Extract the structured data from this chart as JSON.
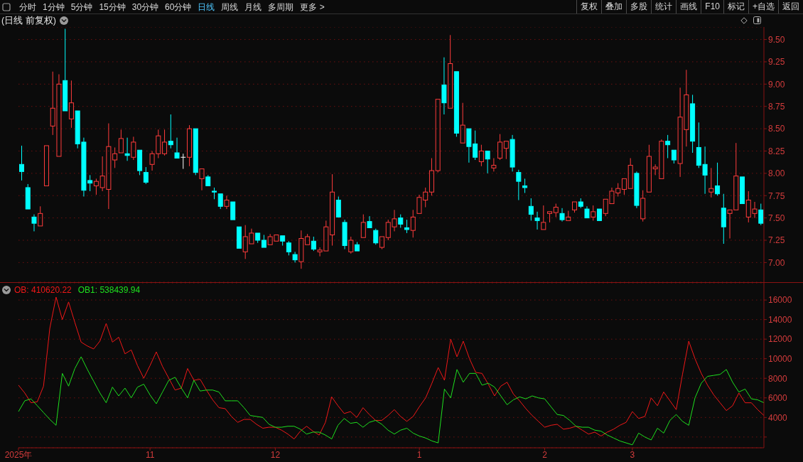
{
  "chart_data": [
    {
      "type": "candlestick",
      "title": "(日线 前复权)",
      "annotations": [
        "分时",
        "1分钟",
        "5分钟",
        "15分钟",
        "30分钟",
        "60分钟",
        "日线",
        "周线",
        "月线",
        "多周期",
        "更多 >",
        "复权",
        "叠加",
        "多股",
        "统计",
        "画线",
        "F10",
        "标记",
        "+自选",
        "返回"
      ],
      "categories": [
        null,
        null,
        null,
        null,
        null,
        null,
        null,
        null,
        null,
        null,
        null,
        null,
        null,
        null,
        null,
        null,
        null,
        null,
        null,
        null,
        null,
        null,
        null,
        null,
        null,
        null,
        null,
        null,
        null,
        null,
        null,
        null,
        null,
        null,
        null,
        null,
        null,
        null,
        null,
        null,
        null,
        null,
        null,
        null,
        null,
        null,
        null,
        null,
        null,
        null,
        null,
        null,
        null,
        null,
        null,
        null,
        null,
        null,
        null,
        null,
        null,
        null,
        null,
        null,
        null,
        null,
        null,
        null,
        null,
        null,
        null,
        null,
        null,
        null,
        null,
        null,
        null,
        null,
        null,
        null,
        null,
        null,
        null,
        null,
        null,
        null,
        null,
        null,
        null,
        null,
        null,
        null,
        null,
        null,
        null,
        null,
        null,
        null,
        null,
        null,
        null,
        null,
        null,
        null,
        null,
        null,
        null,
        null,
        null,
        null,
        null,
        null,
        null,
        null,
        null,
        null,
        null,
        null,
        null,
        null
      ],
      "ohlc": [
        [
          8.1,
          8.31,
          7.92,
          8.02
        ],
        [
          7.84,
          7.88,
          7.6,
          7.6
        ],
        [
          7.51,
          7.54,
          7.35,
          7.44
        ],
        [
          7.41,
          7.63,
          7.41,
          7.55
        ],
        [
          7.86,
          8.31,
          7.86,
          8.31
        ],
        [
          8.53,
          9.14,
          8.43,
          8.73
        ],
        [
          8.19,
          9.11,
          8.19,
          9.0
        ],
        [
          9.04,
          9.62,
          8.7,
          8.7
        ],
        [
          8.61,
          9.04,
          8.51,
          8.79
        ],
        [
          8.7,
          8.7,
          8.28,
          8.33
        ],
        [
          8.35,
          8.4,
          7.74,
          7.81
        ],
        [
          7.92,
          7.98,
          7.8,
          7.89
        ],
        [
          7.86,
          7.94,
          7.76,
          7.91
        ],
        [
          7.84,
          8.19,
          7.8,
          7.97
        ],
        [
          7.82,
          8.56,
          7.6,
          8.3
        ],
        [
          8.15,
          8.29,
          8.06,
          8.22
        ],
        [
          8.23,
          8.49,
          8.23,
          8.39
        ],
        [
          8.22,
          8.4,
          8.14,
          8.2
        ],
        [
          8.18,
          8.41,
          8.15,
          8.35
        ],
        [
          8.26,
          8.26,
          7.98,
          8.03
        ],
        [
          8.01,
          8.07,
          7.88,
          7.9
        ],
        [
          8.1,
          8.25,
          8.03,
          8.22
        ],
        [
          8.22,
          8.49,
          8.17,
          8.42
        ],
        [
          8.22,
          8.49,
          8.2,
          8.35
        ],
        [
          8.36,
          8.66,
          8.28,
          8.32
        ],
        [
          8.23,
          8.4,
          8.17,
          8.17
        ],
        [
          8.18,
          8.22,
          8.05,
          8.18
        ],
        [
          8.18,
          8.54,
          8.08,
          8.5
        ],
        [
          8.5,
          8.5,
          7.98,
          8.01
        ],
        [
          7.94,
          8.05,
          7.81,
          8.05
        ],
        [
          7.96,
          7.98,
          7.86,
          7.86
        ],
        [
          7.8,
          7.84,
          7.71,
          7.79
        ],
        [
          7.77,
          7.77,
          7.6,
          7.63
        ],
        [
          7.63,
          7.75,
          7.6,
          7.7
        ],
        [
          7.68,
          7.68,
          7.48,
          7.48
        ],
        [
          7.4,
          7.4,
          7.16,
          7.16
        ],
        [
          7.12,
          7.42,
          7.04,
          7.29
        ],
        [
          7.21,
          7.38,
          7.21,
          7.33
        ],
        [
          7.33,
          7.33,
          7.22,
          7.25
        ],
        [
          7.25,
          7.31,
          7.17,
          7.17
        ],
        [
          7.2,
          7.32,
          7.2,
          7.29
        ],
        [
          7.24,
          7.31,
          7.24,
          7.31
        ],
        [
          7.3,
          7.3,
          7.19,
          7.24
        ],
        [
          7.22,
          7.24,
          7.08,
          7.12
        ],
        [
          7.09,
          7.12,
          7.0,
          7.03
        ],
        [
          7.01,
          7.36,
          6.93,
          7.27
        ],
        [
          7.2,
          7.32,
          7.2,
          7.29
        ],
        [
          7.24,
          7.29,
          7.13,
          7.15
        ],
        [
          7.12,
          7.17,
          7.07,
          7.14
        ],
        [
          7.13,
          7.47,
          7.13,
          7.4
        ],
        [
          7.31,
          7.99,
          7.19,
          7.79
        ],
        [
          7.7,
          7.74,
          7.51,
          7.51
        ],
        [
          7.45,
          7.48,
          7.15,
          7.19
        ],
        [
          7.12,
          7.29,
          7.1,
          7.25
        ],
        [
          7.2,
          7.23,
          7.13,
          7.13
        ],
        [
          7.28,
          7.54,
          7.28,
          7.45
        ],
        [
          7.46,
          7.52,
          7.39,
          7.39
        ],
        [
          7.36,
          7.38,
          7.2,
          7.22
        ],
        [
          7.17,
          7.29,
          7.15,
          7.29
        ],
        [
          7.28,
          7.48,
          7.25,
          7.45
        ],
        [
          7.4,
          7.59,
          7.35,
          7.49
        ],
        [
          7.5,
          7.54,
          7.39,
          7.43
        ],
        [
          7.39,
          7.48,
          7.33,
          7.37
        ],
        [
          7.36,
          7.59,
          7.28,
          7.51
        ],
        [
          7.55,
          7.76,
          7.55,
          7.73
        ],
        [
          7.7,
          7.84,
          7.62,
          7.79
        ],
        [
          7.79,
          8.17,
          7.75,
          8.03
        ],
        [
          8.03,
          8.83,
          8.01,
          8.83
        ],
        [
          8.99,
          9.3,
          8.66,
          8.79
        ],
        [
          8.73,
          9.55,
          8.73,
          9.23
        ],
        [
          9.14,
          9.14,
          8.41,
          8.45
        ],
        [
          8.34,
          8.79,
          8.34,
          8.54
        ],
        [
          8.5,
          8.5,
          8.12,
          8.3
        ],
        [
          8.33,
          8.48,
          8.15,
          8.18
        ],
        [
          8.13,
          8.32,
          8.08,
          8.25
        ],
        [
          8.25,
          8.25,
          8.0,
          8.16
        ],
        [
          8.06,
          8.17,
          8.02,
          8.09
        ],
        [
          8.17,
          8.44,
          8.15,
          8.35
        ],
        [
          8.28,
          8.36,
          8.16,
          8.36
        ],
        [
          8.38,
          8.43,
          8.02,
          8.07
        ],
        [
          8.01,
          8.04,
          7.7,
          7.91
        ],
        [
          7.86,
          7.94,
          7.78,
          7.84
        ],
        [
          7.63,
          7.72,
          7.47,
          7.54
        ],
        [
          7.5,
          7.57,
          7.37,
          7.47
        ],
        [
          7.37,
          7.64,
          7.37,
          7.45
        ],
        [
          7.55,
          7.57,
          7.45,
          7.57
        ],
        [
          7.56,
          7.66,
          7.51,
          7.62
        ],
        [
          7.55,
          7.61,
          7.46,
          7.48
        ],
        [
          7.47,
          7.58,
          7.47,
          7.51
        ],
        [
          7.59,
          7.68,
          7.56,
          7.68
        ],
        [
          7.68,
          7.72,
          7.61,
          7.63
        ],
        [
          7.6,
          7.63,
          7.5,
          7.5
        ],
        [
          7.51,
          7.64,
          7.47,
          7.57
        ],
        [
          7.6,
          7.6,
          7.47,
          7.47
        ],
        [
          7.55,
          7.71,
          7.52,
          7.71
        ],
        [
          7.66,
          7.84,
          7.66,
          7.8
        ],
        [
          7.78,
          7.89,
          7.74,
          7.83
        ],
        [
          7.82,
          7.94,
          7.76,
          7.94
        ],
        [
          7.83,
          8.17,
          7.83,
          8.09
        ],
        [
          8.0,
          8.02,
          7.61,
          7.64
        ],
        [
          7.49,
          7.81,
          7.46,
          7.72
        ],
        [
          7.79,
          8.32,
          7.79,
          8.19
        ],
        [
          8.05,
          8.1,
          7.98,
          8.07
        ],
        [
          7.94,
          8.38,
          7.94,
          8.36
        ],
        [
          8.36,
          8.43,
          8.17,
          8.32
        ],
        [
          8.26,
          8.26,
          8.11,
          8.15
        ],
        [
          8.11,
          8.96,
          7.96,
          8.63
        ],
        [
          8.49,
          9.16,
          8.3,
          8.88
        ],
        [
          8.78,
          8.88,
          8.23,
          8.36
        ],
        [
          8.29,
          8.57,
          8.06,
          8.09
        ],
        [
          8.1,
          8.3,
          7.77,
          7.98
        ],
        [
          7.79,
          8.06,
          7.73,
          7.83
        ],
        [
          7.86,
          8.12,
          7.75,
          7.77
        ],
        [
          7.61,
          7.77,
          7.21,
          7.4
        ],
        [
          7.55,
          7.59,
          7.27,
          7.59
        ],
        [
          7.59,
          8.34,
          7.59,
          7.97
        ],
        [
          7.96,
          7.96,
          7.66,
          7.66
        ],
        [
          7.51,
          7.8,
          7.45,
          7.7
        ],
        [
          7.55,
          7.68,
          7.5,
          7.6
        ],
        [
          7.59,
          7.66,
          7.42,
          7.44
        ]
      ],
      "colors": [
        "#00ffff",
        "#00ffff",
        "#00ffff",
        "#ff3c3c",
        "#ff3c3c",
        "#ff3c3c",
        "#ff3c3c",
        "#00ffff",
        "#ff3c3c",
        "#00ffff",
        "#00ffff",
        "#00ffff",
        "#ff3c3c",
        "#ff3c3c",
        "#ff3c3c",
        "#ff3c3c",
        "#ff3c3c",
        "#00ffff",
        "#ff3c3c",
        "#00ffff",
        "#00ffff",
        "#ff3c3c",
        "#ff3c3c",
        "#ff3c3c",
        "#00ffff",
        "#00ffff",
        "#ffffff",
        "#ff3c3c",
        "#00ffff",
        "#ff3c3c",
        "#00ffff",
        "#00ffff",
        "#00ffff",
        "#ff3c3c",
        "#00ffff",
        "#00ffff",
        "#ff3c3c",
        "#ff3c3c",
        "#00ffff",
        "#00ffff",
        "#ff3c3c",
        "#ff3c3c",
        "#00ffff",
        "#00ffff",
        "#00ffff",
        "#ff3c3c",
        "#ff3c3c",
        "#00ffff",
        "#ff3c3c",
        "#ff3c3c",
        "#ff3c3c",
        "#00ffff",
        "#00ffff",
        "#ff3c3c",
        "#00ffff",
        "#ff3c3c",
        "#00ffff",
        "#00ffff",
        "#ff3c3c",
        "#ff3c3c",
        "#ff3c3c",
        "#00ffff",
        "#00ffff",
        "#ff3c3c",
        "#ff3c3c",
        "#ff3c3c",
        "#ff3c3c",
        "#ff3c3c",
        "#00ffff",
        "#ff3c3c",
        "#00ffff",
        "#ff3c3c",
        "#00ffff",
        "#00ffff",
        "#ff3c3c",
        "#00ffff",
        "#ff3c3c",
        "#ff3c3c",
        "#ff3c3c",
        "#00ffff",
        "#00ffff",
        "#00ffff",
        "#00ffff",
        "#00ffff",
        "#ff3c3c",
        "#ff3c3c",
        "#ff3c3c",
        "#00ffff",
        "#ff3c3c",
        "#ff3c3c",
        "#00ffff",
        "#00ffff",
        "#ff3c3c",
        "#00ffff",
        "#ff3c3c",
        "#ff3c3c",
        "#ff3c3c",
        "#ff3c3c",
        "#ff3c3c",
        "#00ffff",
        "#ff3c3c",
        "#ff3c3c",
        "#ff3c3c",
        "#ff3c3c",
        "#00ffff",
        "#00ffff",
        "#ff3c3c",
        "#ff3c3c",
        "#00ffff",
        "#00ffff",
        "#00ffff",
        "#ff3c3c",
        "#00ffff",
        "#00ffff",
        "#ff3c3c",
        "#ff3c3c",
        "#00ffff",
        "#ff3c3c",
        "#ff3c3c",
        "#00ffff"
      ],
      "ylim": [
        6.78,
        9.64
      ],
      "yticks": [
        {
          "value": 7,
          "label": "7.00"
        },
        {
          "value": 7.25,
          "label": "7.25"
        },
        {
          "value": 7.5,
          "label": "7.50"
        },
        {
          "value": 7.75,
          "label": "7.75"
        },
        {
          "value": 8,
          "label": "8.00"
        },
        {
          "value": 8.25,
          "label": "8.25"
        },
        {
          "value": 8.5,
          "label": "8.50"
        },
        {
          "value": 8.75,
          "label": "8.75"
        },
        {
          "value": 9,
          "label": "9.00"
        },
        {
          "value": 9.25,
          "label": "9.25"
        },
        {
          "value": 9.5,
          "label": "9.50"
        }
      ],
      "grid": "y",
      "tick_labels": "y"
    },
    {
      "type": "line",
      "categories": [
        "2025年",
        null,
        null,
        null,
        null,
        null,
        null,
        null,
        null,
        null,
        null,
        null,
        null,
        null,
        null,
        null,
        null,
        null,
        null,
        null,
        null,
        "11",
        null,
        null,
        null,
        null,
        null,
        null,
        null,
        null,
        null,
        null,
        null,
        null,
        null,
        null,
        null,
        null,
        null,
        null,
        null,
        "12",
        null,
        null,
        null,
        null,
        null,
        null,
        null,
        null,
        null,
        null,
        null,
        null,
        null,
        null,
        null,
        null,
        null,
        null,
        null,
        null,
        null,
        null,
        "1",
        null,
        null,
        null,
        null,
        null,
        null,
        null,
        null,
        null,
        null,
        null,
        null,
        null,
        null,
        null,
        null,
        null,
        null,
        null,
        "2",
        null,
        null,
        null,
        null,
        null,
        null,
        null,
        null,
        null,
        null,
        null,
        null,
        null,
        "3",
        null,
        null,
        null,
        null,
        null,
        null,
        null,
        null,
        null,
        null,
        null,
        null,
        null,
        null,
        null,
        null,
        null,
        null,
        null,
        null,
        null
      ],
      "series": [
        {
          "name": "OB: 410620.22",
          "color": "#f01818",
          "values": [
            7300,
            6500,
            5500,
            5600,
            7200,
            13100,
            16300,
            14000,
            15800,
            13700,
            11700,
            11300,
            11000,
            11800,
            13600,
            11700,
            12200,
            10500,
            10900,
            9300,
            8000,
            9300,
            10700,
            9200,
            8000,
            6800,
            7000,
            9000,
            7800,
            7900,
            6800,
            5800,
            5000,
            4900,
            4100,
            3500,
            3800,
            3800,
            3300,
            2900,
            3000,
            3000,
            2700,
            2300,
            1800,
            2600,
            3100,
            2600,
            2200,
            3500,
            6100,
            5200,
            4400,
            4600,
            4000,
            5000,
            4300,
            3700,
            3700,
            4200,
            4800,
            4100,
            3600,
            4100,
            5100,
            6000,
            7500,
            9100,
            7800,
            12000,
            10200,
            11800,
            10000,
            8600,
            8500,
            7400,
            6200,
            7200,
            7600,
            6400,
            5700,
            4900,
            4200,
            3600,
            3000,
            3200,
            3300,
            2800,
            2900,
            3100,
            2700,
            2300,
            2500,
            2100,
            2500,
            2800,
            3200,
            3500,
            4600,
            3900,
            4100,
            6000,
            5200,
            6600,
            5700,
            4800,
            8400,
            11800,
            10000,
            8500,
            7300,
            6300,
            5500,
            4700,
            5200,
            6500,
            5500,
            5500,
            4800,
            4200
          ]
        },
        {
          "name": "OB1: 538439.94",
          "color": "#1ee01e",
          "values": [
            4600,
            5700,
            5900,
            5200,
            4500,
            3800,
            3200,
            8500,
            7200,
            9000,
            10200,
            8900,
            7700,
            6500,
            5500,
            7100,
            6200,
            7000,
            6000,
            7100,
            7400,
            6300,
            5400,
            6600,
            7800,
            8100,
            7000,
            6000,
            7800,
            6700,
            6800,
            6800,
            6600,
            5700,
            5700,
            5700,
            5000,
            4200,
            4100,
            4000,
            3300,
            3000,
            3000,
            3100,
            3100,
            2800,
            2300,
            2500,
            2500,
            2200,
            1800,
            3200,
            3900,
            3400,
            3500,
            3000,
            3500,
            3700,
            3300,
            2700,
            2300,
            2700,
            2900,
            2400,
            2100,
            1900,
            1600,
            1400,
            6900,
            6000,
            8900,
            7600,
            8500,
            8500,
            7300,
            7500,
            7100,
            6200,
            5300,
            5800,
            6100,
            5900,
            6200,
            6000,
            5900,
            5100,
            4300,
            4200,
            3700,
            3100,
            3000,
            3000,
            2700,
            2600,
            2200,
            1900,
            1600,
            1400,
            1200,
            2400,
            2000,
            1700,
            2900,
            2400,
            3700,
            4300,
            3600,
            3200,
            6000,
            7500,
            8200,
            8300,
            8400,
            8900,
            7600,
            6600,
            6900,
            5900,
            5800,
            5500
          ]
        }
      ],
      "ylim": [
        900,
        17750
      ],
      "yticks": [
        {
          "value": 2000,
          "label": null
        },
        4000,
        6000,
        8000,
        10000,
        12000,
        14000,
        16000
      ],
      "grid": "y",
      "legend": "top left",
      "marker": "none"
    }
  ]
}
